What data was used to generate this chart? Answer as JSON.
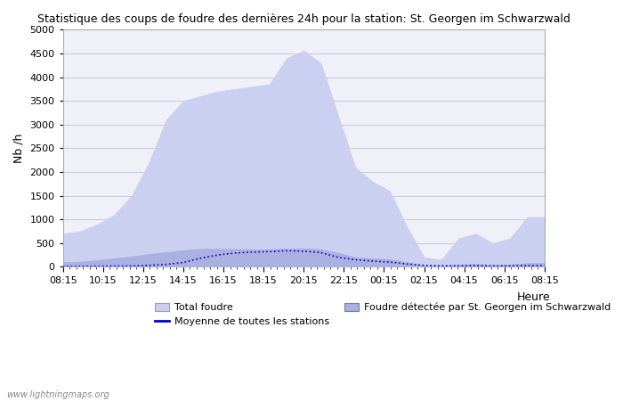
{
  "title": "Statistique des coups de foudre des dernières 24h pour la station: St. Georgen im Schwarzwald",
  "xlabel": "Heure",
  "ylabel": "Nb /h",
  "yticks": [
    0,
    500,
    1000,
    1500,
    2000,
    2500,
    3000,
    3500,
    4000,
    4500,
    5000
  ],
  "ylim": [
    0,
    5000
  ],
  "xtick_labels": [
    "08:15",
    "10:15",
    "12:15",
    "14:15",
    "16:15",
    "18:15",
    "20:15",
    "22:15",
    "00:15",
    "02:15",
    "04:15",
    "06:15",
    "08:15"
  ],
  "background_color": "#ffffff",
  "plot_bg_color": "#f0f0f8",
  "grid_color": "#ccccdd",
  "total_foudre_color": "#ccd0f0",
  "total_foudre_edge": "#ccd0f0",
  "detected_color": "#aab0e0",
  "detected_edge": "#aab0e0",
  "mean_line_color": "#0000cc",
  "watermark": "www.lightningmaps.org",
  "legend_labels": [
    "Total foudre",
    "Moyenne de toutes les stations",
    "Foudre détectée par St. Georgen im Schwarzwald"
  ],
  "n_ticks": 13,
  "total_foudre_y": [
    700,
    750,
    900,
    1100,
    1500,
    2200,
    3100,
    3500,
    3600,
    3700,
    3750,
    3800,
    3850,
    4400,
    4560,
    4300,
    3200,
    2100,
    1800,
    1600,
    850,
    200,
    150,
    600,
    700,
    500,
    600,
    1050,
    1050
  ],
  "detected_y": [
    100,
    110,
    140,
    180,
    220,
    270,
    310,
    350,
    380,
    380,
    375,
    370,
    370,
    385,
    390,
    370,
    300,
    200,
    180,
    160,
    100,
    30,
    25,
    50,
    60,
    40,
    50,
    80,
    80
  ],
  "mean_y": [
    10,
    10,
    12,
    15,
    18,
    30,
    50,
    90,
    180,
    250,
    290,
    310,
    320,
    340,
    330,
    300,
    200,
    150,
    120,
    100,
    60,
    30,
    20,
    20,
    25,
    20,
    20,
    25,
    25
  ]
}
